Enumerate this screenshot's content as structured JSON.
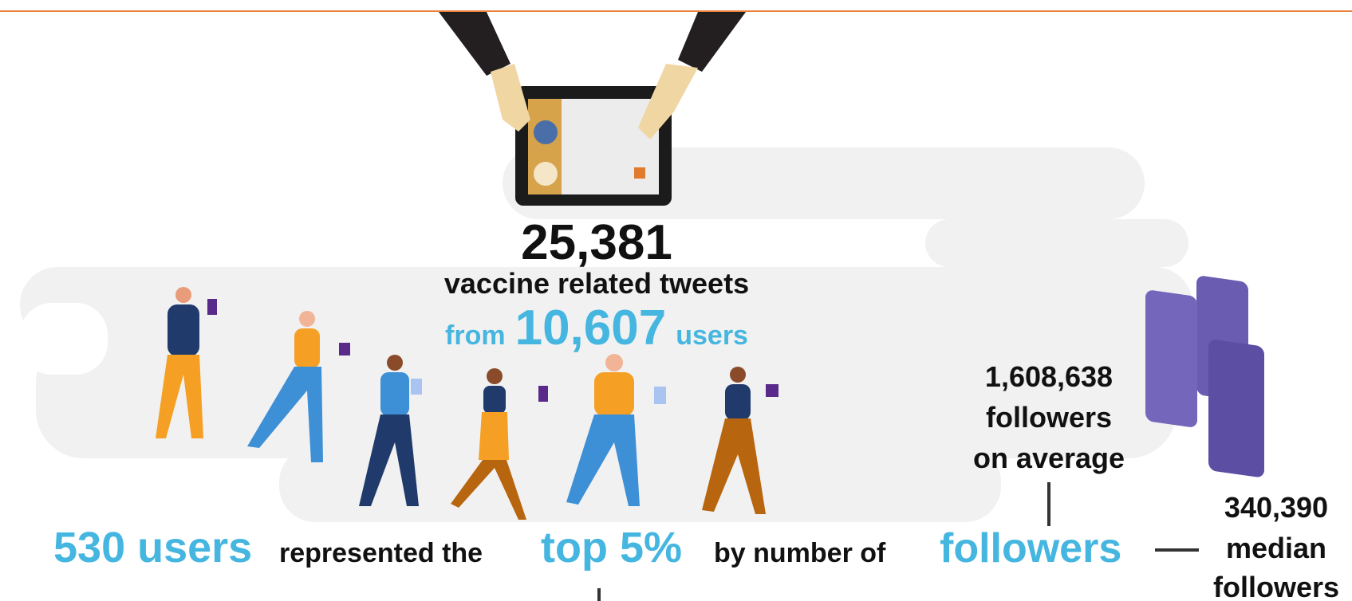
{
  "headline": {
    "count": "25,381",
    "label": "vaccine related tweets"
  },
  "users_line": {
    "prefix": "from",
    "count": "10,607",
    "suffix": "users"
  },
  "top_line": {
    "users": "530 users",
    "text1": "represented the",
    "top": "top 5%",
    "text2": "by number of",
    "followers": "followers"
  },
  "average": {
    "value": "1,608,638",
    "line1": "followers",
    "line2": "on average"
  },
  "median": {
    "value": "340,390",
    "line1": "median",
    "line2": "followers"
  }
}
